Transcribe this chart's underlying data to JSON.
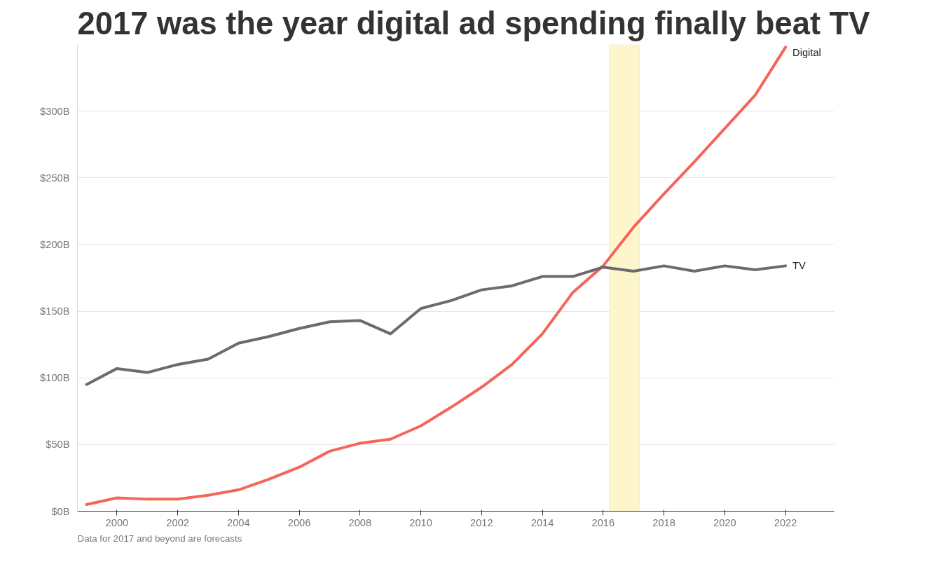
{
  "chart_data": {
    "type": "line",
    "title": "2017 was the year digital ad spending finally beat TV",
    "x": [
      1999,
      2000,
      2001,
      2002,
      2003,
      2004,
      2005,
      2006,
      2007,
      2008,
      2009,
      2010,
      2011,
      2012,
      2013,
      2014,
      2015,
      2016,
      2017,
      2018,
      2019,
      2020,
      2021,
      2022
    ],
    "series": [
      {
        "name": "Digital",
        "color": "#f4655a",
        "values": [
          5,
          10,
          9,
          9,
          12,
          16,
          24,
          33,
          45,
          51,
          54,
          64,
          78,
          93,
          110,
          133,
          164,
          184,
          213,
          238,
          262,
          287,
          312,
          348
        ]
      },
      {
        "name": "TV",
        "color": "#6b6b6b",
        "values": [
          95,
          107,
          104,
          110,
          114,
          126,
          131,
          137,
          142,
          143,
          133,
          152,
          158,
          166,
          169,
          176,
          176,
          183,
          180,
          184,
          180,
          184,
          181,
          184
        ]
      }
    ],
    "xlim": [
      1998.7,
      2023.6
    ],
    "xticks": [
      2000,
      2002,
      2004,
      2006,
      2008,
      2010,
      2012,
      2014,
      2016,
      2018,
      2020,
      2022
    ],
    "ylim": [
      0,
      350
    ],
    "yticks": [
      {
        "value": 0,
        "label": "$0B"
      },
      {
        "value": 50,
        "label": "$50B"
      },
      {
        "value": 100,
        "label": "$100B"
      },
      {
        "value": 150,
        "label": "$150B"
      },
      {
        "value": 200,
        "label": "$200B"
      },
      {
        "value": 250,
        "label": "$250B"
      },
      {
        "value": 300,
        "label": "$300B"
      }
    ],
    "grid": "y",
    "line_style": "solid",
    "bands": [
      {
        "axis": "x",
        "from": 2016.2,
        "to": 2017.2,
        "color": "#fdf5cc"
      }
    ],
    "annotations": [
      "Data for 2017 and beyond are forecasts"
    ]
  }
}
